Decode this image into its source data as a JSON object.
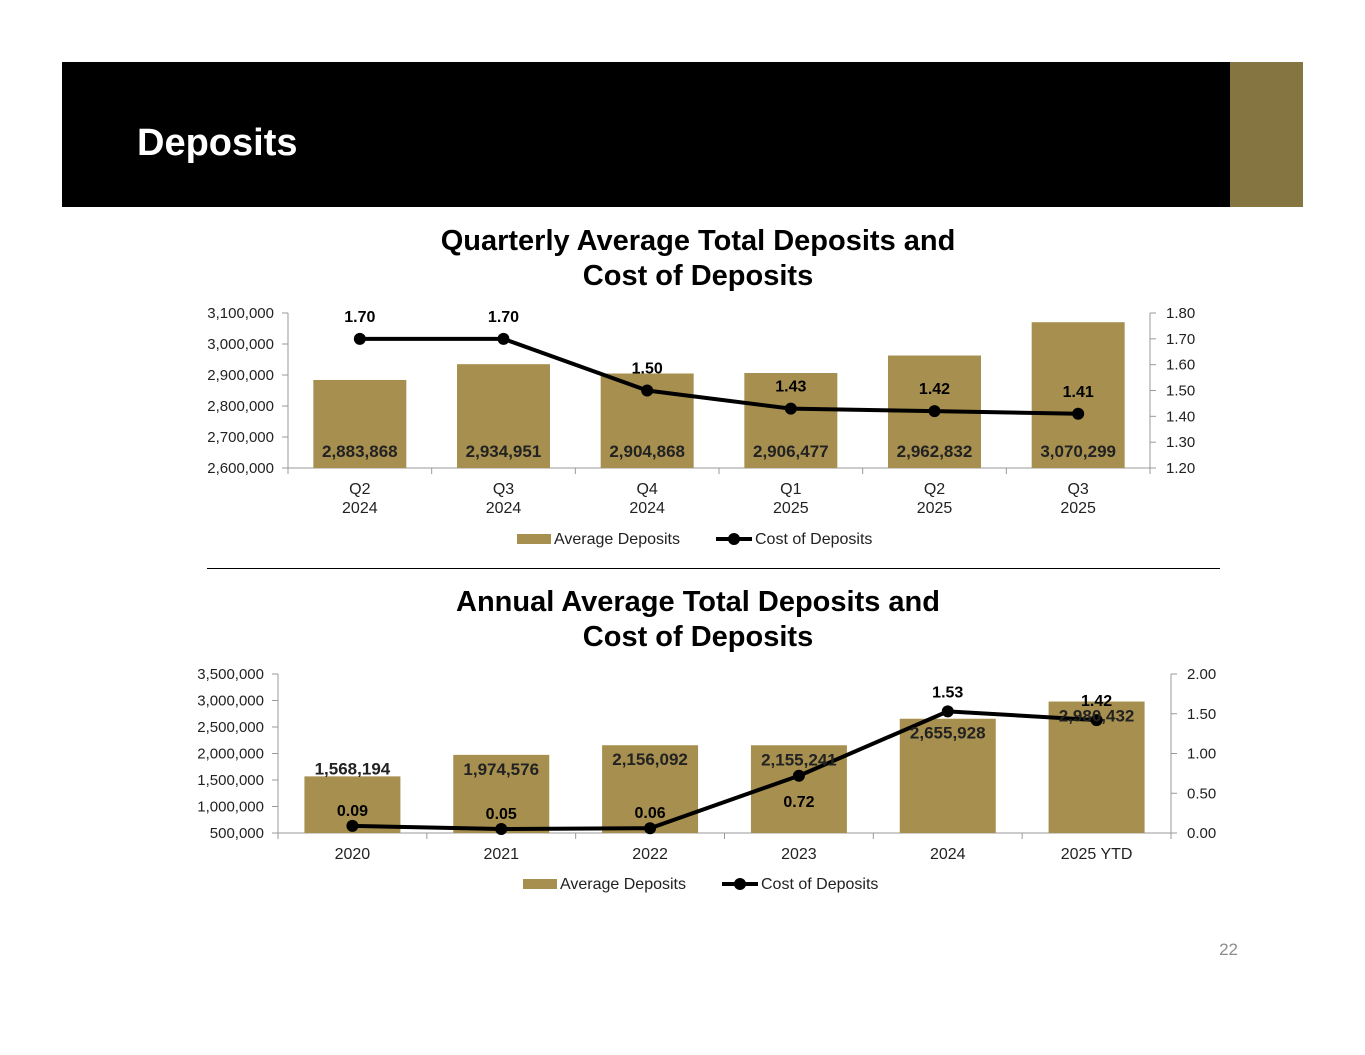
{
  "page": {
    "title": "Deposits",
    "page_number": "22",
    "colors": {
      "header": "#000000",
      "accent": "#857540",
      "bar": "#A7904F",
      "line": "#000000"
    }
  },
  "chart_data": [
    {
      "type": "bar",
      "title_lines": [
        "Quarterly Average Total Deposits and",
        "Cost of Deposits"
      ],
      "categories": [
        [
          "Q2",
          "2024"
        ],
        [
          "Q3",
          "2024"
        ],
        [
          "Q4",
          "2024"
        ],
        [
          "Q1",
          "2025"
        ],
        [
          "Q2",
          "2025"
        ],
        [
          "Q3",
          "2025"
        ]
      ],
      "series": [
        {
          "name": "Average Deposits",
          "kind": "bar",
          "axis": "left",
          "values": [
            2883868,
            2934951,
            2904868,
            2906477,
            2962832,
            3070299
          ],
          "labels": [
            "2,883,868",
            "2,934,951",
            "2,904,868",
            "2,906,477",
            "2,962,832",
            "3,070,299"
          ]
        },
        {
          "name": "Cost of Deposits",
          "kind": "line",
          "axis": "right",
          "values": [
            1.7,
            1.7,
            1.5,
            1.43,
            1.42,
            1.41
          ],
          "labels": [
            "1.70",
            "1.70",
            "1.50",
            "1.43",
            "1.42",
            "1.41"
          ]
        }
      ],
      "left_axis": {
        "min": 2600000,
        "max": 3100000,
        "ticks": [
          "2,600,000",
          "2,700,000",
          "2,800,000",
          "2,900,000",
          "3,000,000",
          "3,100,000"
        ]
      },
      "right_axis": {
        "min": 1.2,
        "max": 1.8,
        "ticks": [
          "1.20",
          "1.30",
          "1.40",
          "1.50",
          "1.60",
          "1.70",
          "1.80"
        ]
      },
      "bar_label_position": "inside-bottom",
      "legend": {
        "position": "bottom",
        "items": [
          "Average Deposits",
          "Cost of Deposits"
        ]
      }
    },
    {
      "type": "bar",
      "title_lines": [
        "Annual Average Total Deposits and",
        "Cost of Deposits"
      ],
      "categories": [
        [
          "2020"
        ],
        [
          "2021"
        ],
        [
          "2022"
        ],
        [
          "2023"
        ],
        [
          "2024"
        ],
        [
          "2025 YTD"
        ]
      ],
      "series": [
        {
          "name": "Average Deposits",
          "kind": "bar",
          "axis": "left",
          "values": [
            1568194,
            1974576,
            2156092,
            2155241,
            2655928,
            2980432
          ],
          "labels": [
            "1,568,194",
            "1,974,576",
            "2,156,092",
            "2,155,241",
            "2,655,928",
            "2,980,432"
          ]
        },
        {
          "name": "Cost of Deposits",
          "kind": "line",
          "axis": "right",
          "values": [
            0.09,
            0.05,
            0.06,
            0.72,
            1.53,
            1.42
          ],
          "labels": [
            "0.09",
            "0.05",
            "0.06",
            "0.72",
            "1.53",
            "1.42"
          ]
        }
      ],
      "left_axis": {
        "min": 500000,
        "max": 3500000,
        "ticks": [
          "500,000",
          "1,000,000",
          "1,500,000",
          "2,000,000",
          "2,500,000",
          "3,000,000",
          "3,500,000"
        ]
      },
      "right_axis": {
        "min": 0,
        "max": 2.0,
        "ticks": [
          "0.00",
          "0.50",
          "1.00",
          "1.50",
          "2.00"
        ]
      },
      "bar_label_position": "top-inside",
      "legend": {
        "position": "bottom",
        "items": [
          "Average Deposits",
          "Cost of Deposits"
        ]
      }
    }
  ]
}
